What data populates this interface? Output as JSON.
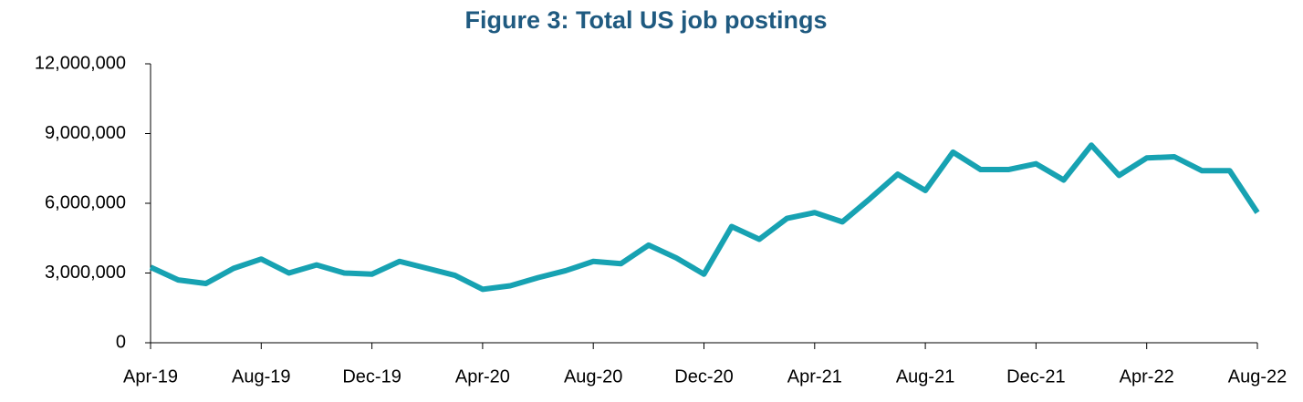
{
  "chart_data": {
    "type": "line",
    "title": "Figure 3: Total US job postings",
    "categories": [
      "Apr-19",
      null,
      null,
      null,
      "Aug-19",
      null,
      null,
      null,
      "Dec-19",
      null,
      null,
      null,
      "Apr-20",
      null,
      null,
      null,
      "Aug-20",
      null,
      null,
      null,
      "Dec-20",
      null,
      null,
      null,
      "Apr-21",
      null,
      null,
      null,
      "Aug-21",
      null,
      null,
      null,
      "Dec-21",
      null,
      null,
      null,
      "Apr-22",
      null,
      null,
      null,
      "Aug-22"
    ],
    "series": [
      {
        "name": "Total US job postings",
        "color": "#17a2b2",
        "values": [
          3250000,
          2700000,
          2550000,
          3200000,
          3600000,
          3000000,
          3350000,
          3000000,
          2950000,
          3500000,
          3200000,
          2900000,
          2300000,
          2450000,
          2800000,
          3100000,
          3500000,
          3400000,
          4200000,
          3650000,
          2950000,
          5000000,
          4450000,
          5350000,
          5600000,
          5200000,
          6200000,
          7250000,
          6550000,
          8200000,
          7450000,
          7450000,
          7700000,
          7000000,
          8500000,
          7200000,
          7950000,
          8000000,
          7400000,
          7400000,
          5600000
        ]
      }
    ],
    "ylim": [
      0,
      12000000
    ],
    "yticks": [
      0,
      {
        "value": 3000000,
        "label": "3,000,000"
      },
      {
        "value": 6000000,
        "label": "6,000,000"
      },
      {
        "value": 9000000,
        "label": "9,000,000"
      },
      {
        "value": 12000000,
        "label": "12,000,000"
      }
    ],
    "grid": false,
    "legend": false
  }
}
